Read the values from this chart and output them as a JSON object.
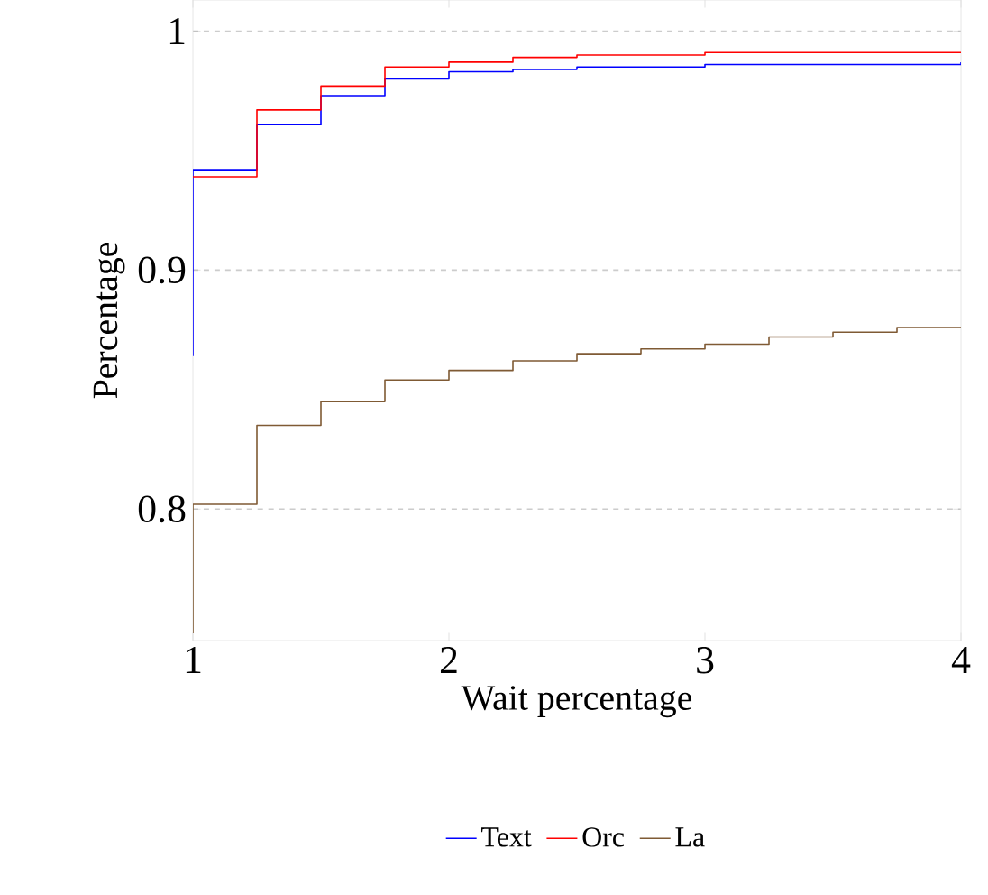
{
  "chart_data": {
    "type": "step",
    "xlabel": "Wait percentage",
    "ylabel": "Percentage",
    "xlim": [
      1,
      4
    ],
    "ylim": [
      0.745,
      1.013
    ],
    "xticks": [
      1,
      2,
      3,
      4
    ],
    "yticks": [
      0.8,
      0.9,
      1
    ],
    "grid": "y",
    "legend": "bottom",
    "line_style": "solid",
    "series": [
      {
        "name": "Text",
        "color": "#0000ff",
        "x": [
          1,
          1,
          1.25,
          1.5,
          1.75,
          2,
          2.25,
          2.5,
          3,
          4
        ],
        "values": [
          0.864,
          0.942,
          0.961,
          0.973,
          0.98,
          0.983,
          0.984,
          0.985,
          0.986,
          0.987
        ]
      },
      {
        "name": "Orc",
        "color": "#ff0000",
        "x": [
          1,
          1.25,
          1.5,
          1.75,
          2,
          2.25,
          2.5,
          3,
          4
        ],
        "values": [
          0.939,
          0.967,
          0.977,
          0.985,
          0.987,
          0.989,
          0.99,
          0.991,
          0.991
        ]
      },
      {
        "name": "La",
        "color": "#7f5a34",
        "x": [
          1,
          1,
          1.25,
          1.5,
          1.75,
          2,
          2.25,
          2.5,
          2.75,
          3,
          3.25,
          3.5,
          3.75,
          4
        ],
        "values": [
          0.748,
          0.802,
          0.835,
          0.845,
          0.854,
          0.858,
          0.862,
          0.865,
          0.867,
          0.869,
          0.872,
          0.874,
          0.876,
          0.876
        ]
      }
    ]
  }
}
